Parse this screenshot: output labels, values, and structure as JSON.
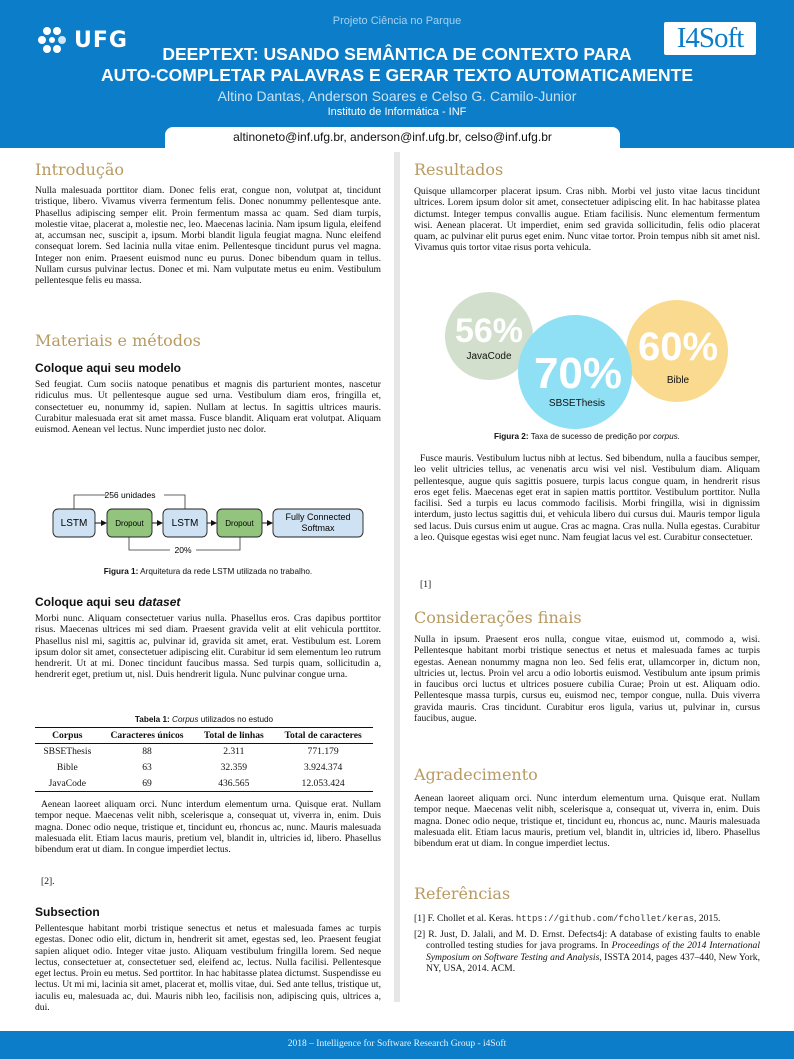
{
  "header": {
    "project": "Projeto Ciência no Parque",
    "title_line1": "DEEPTEXT: USANDO SEMÂNTICA DE CONTEXTO PARA",
    "title_line2": "AUTO-COMPLETAR PALAVRAS E GERAR TEXTO AUTOMATICAMENTE",
    "authors": "Altino Dantas, Anderson Soares e Celso G. Camilo-Junior",
    "institute": "Instituto de Informática - INF",
    "emails": "altinoneto@inf.ufg.br, anderson@inf.ufg.br, celso@inf.ufg.br",
    "logo_left": "UFG",
    "logo_right": "I4Soft",
    "color": "#0b7dc9"
  },
  "left": {
    "intro": {
      "title": "Introdução",
      "text": "Nulla malesuada porttitor diam. Donec felis erat, congue non, volutpat at, tincidunt tristique, libero. Vivamus viverra fermentum felis. Donec nonummy pellentesque ante. Phasellus adipiscing semper elit. Proin fermentum massa ac quam. Sed diam turpis, molestie vitae, placerat a, molestie nec, leo. Maecenas lacinia. Nam ipsum ligula, eleifend at, accumsan nec, suscipit a, ipsum. Morbi blandit ligula feugiat magna. Nunc eleifend consequat lorem. Sed lacinia nulla vitae enim. Pellentesque tincidunt purus vel magna. Integer non enim. Praesent euismod nunc eu purus. Donec bibendum quam in tellus. Nullam cursus pulvinar lectus. Donec et mi. Nam vulputate metus eu enim. Vestibulum pellentesque felis eu massa."
    },
    "methods": {
      "title": "Materiais e métodos",
      "model_heading": "Coloque aqui seu modelo",
      "model_text": "Sed feugiat. Cum sociis natoque penatibus et magnis dis parturient montes, nascetur ridiculus mus. Ut pellentesque augue sed urna. Vestibulum diam eros, fringilla et, consectetuer eu, nonummy id, sapien. Nullam at lectus. In sagittis ultrices mauris. Curabitur malesuada erat sit amet massa. Fusce blandit. Aliquam erat volutpat. Aliquam euismod. Aenean vel lectus. Nunc imperdiet justo nec dolor.",
      "diagram": {
        "nodes": [
          "LSTM",
          "Dropout",
          "LSTM",
          "Dropout",
          "Fully Connected",
          "Softmax"
        ],
        "units_label": "256 unidades",
        "dropout_label": "20%",
        "lstm_color": "#cfe2f3",
        "dropout_color": "#93c47d"
      },
      "figure1_label": "Figura 1:",
      "figure1_caption": "Arquitetura da rede LSTM utilizada no trabalho.",
      "dataset_heading_prefix": "Coloque aqui seu ",
      "dataset_heading_em": "dataset",
      "dataset_text": "Morbi nunc. Aliquam consectetuer varius nulla. Phasellus eros. Cras dapibus porttitor risus. Maecenas ultrices mi sed diam. Praesent gravida velit at elit vehicula porttitor. Phasellus nisl mi, sagittis ac, pulvinar id, gravida sit amet, erat. Vestibulum est. Lorem ipsum dolor sit amet, consectetuer adipiscing elit. Curabitur id sem elementum leo rutrum hendrerit. Ut at mi. Donec tincidunt faucibus massa. Sed turpis quam, sollicitudin a, hendrerit eget, pretium ut, nisl. Duis hendrerit ligula. Nunc pulvinar congue urna.",
      "table": {
        "label": "Tabela 1:",
        "caption_em": "Corpus",
        "caption_rest": " utilizados no estudo",
        "headers": [
          "Corpus",
          "Caracteres únicos",
          "Total de linhas",
          "Total de caracteres"
        ],
        "rows": [
          [
            "SBSEThesis",
            "88",
            "2.311",
            "771.179"
          ],
          [
            "Bible",
            "63",
            "32.359",
            "3.924.374"
          ],
          [
            "JavaCode",
            "69",
            "436.565",
            "12.053.424"
          ]
        ]
      },
      "after_table_text": "Aenean laoreet aliquam orci. Nunc interdum elementum urna. Quisque erat. Nullam tempor neque. Maecenas velit nibh, scelerisque a, consequat ut, viverra in, enim. Duis magna. Donec odio neque, tristique et, tincidunt eu, rhoncus ac, nunc. Mauris malesuada malesuada elit. Etiam lacus mauris, pretium vel, blandit in, ultricies id, libero. Phasellus bibendum erat ut diam. In congue imperdiet lectus.",
      "after_table_cite": "[2].",
      "subsection_heading": "Subsection",
      "subsection_text": "Pellentesque habitant morbi tristique senectus et netus et malesuada fames ac turpis egestas. Donec odio elit, dictum in, hendrerit sit amet, egestas sed, leo. Praesent feugiat sapien aliquet odio. Integer vitae justo. Aliquam vestibulum fringilla lorem. Sed neque lectus, consectetuer at, consectetuer sed, eleifend ac, lectus. Nulla facilisi. Pellentesque eget lectus. Proin eu metus. Sed porttitor. In hac habitasse platea dictumst. Suspendisse eu lectus. Ut mi mi, lacinia sit amet, placerat et, mollis vitae, dui. Sed ante tellus, tristique ut, iaculis eu, malesuada ac, dui. Mauris nibh leo, facilisis non, adipiscing quis, ultrices a, dui."
    }
  },
  "right": {
    "results": {
      "title": "Resultados",
      "text": "Quisque ullamcorper placerat ipsum. Cras nibh. Morbi vel justo vitae lacus tincidunt ultrices. Lorem ipsum dolor sit amet, consectetuer adipiscing elit. In hac habitasse platea dictumst. Integer tempus convallis augue. Etiam facilisis. Nunc elementum fermentum wisi. Aenean placerat. Ut imperdiet, enim sed gravida sollicitudin, felis odio placerat quam, ac pulvinar elit purus eget enim. Nunc vitae tortor. Proin tempus nibh sit amet nisl. Vivamus quis tortor vitae risus porta vehicula.",
      "figure2": {
        "items": [
          {
            "value": "56%",
            "label": "JavaCode",
            "color": "#d2dfcc"
          },
          {
            "value": "70%",
            "label": "SBSEThesis",
            "color": "#8fe0f4"
          },
          {
            "value": "60%",
            "label": "Bible",
            "color": "#f9da8e"
          }
        ],
        "label": "Figura 2:",
        "caption_rest": " Taxa de sucesso de predição por ",
        "caption_em": "corpus."
      },
      "text2": "Fusce mauris. Vestibulum luctus nibh at lectus. Sed bibendum, nulla a faucibus semper, leo velit ultricies tellus, ac venenatis arcu wisi vel nisl. Vestibulum diam. Aliquam pellentesque, augue quis sagittis posuere, turpis lacus congue quam, in hendrerit risus eros eget felis. Maecenas eget erat in sapien mattis porttitor. Vestibulum porttitor. Nulla facilisi. Sed a turpis eu lacus commodo facilisis. Morbi fringilla, wisi in dignissim interdum, justo lectus sagittis dui, et vehicula libero dui cursus dui. Mauris tempor ligula sed lacus. Duis cursus enim ut augue. Cras ac magna. Cras nulla. Nulla egestas. Curabitur a leo. Quisque egestas wisi eget nunc. Nam feugiat lacus vel est. Curabitur consectetuer.",
      "cite": "[1]"
    },
    "conclusions": {
      "title": "Considerações finais",
      "text": "Nulla in ipsum. Praesent eros nulla, congue vitae, euismod ut, commodo a, wisi. Pellentesque habitant morbi tristique senectus et netus et malesuada fames ac turpis egestas. Aenean nonummy magna non leo. Sed felis erat, ullamcorper in, dictum non, ultricies ut, lectus. Proin vel arcu a odio lobortis euismod. Vestibulum ante ipsum primis in faucibus orci luctus et ultrices posuere cubilia Curae; Proin ut est. Aliquam odio. Pellentesque massa turpis, cursus eu, euismod nec, tempor congue, nulla. Duis viverra gravida mauris. Cras tincidunt. Curabitur eros ligula, varius ut, pulvinar in, cursus faucibus, augue."
    },
    "acknowledgements": {
      "title": "Agradecimento",
      "text": "Aenean laoreet aliquam orci. Nunc interdum elementum urna. Quisque erat. Nullam tempor neque. Maecenas velit nibh, scelerisque a, consequat ut, viverra in, enim. Duis magna. Donec odio neque, tristique et, tincidunt eu, rhoncus ac, nunc. Mauris malesuada malesuada elit. Etiam lacus mauris, pretium vel, blandit in, ultricies id, libero. Phasellus bibendum erat ut diam. In congue imperdiet lectus."
    },
    "references": {
      "title": "Referências",
      "ref1": {
        "num": "[1]",
        "text": " F. Chollet et al. Keras. ",
        "url": "https://github.com/fchollet/keras",
        "tail": ", 2015."
      },
      "ref2": {
        "num": "[2]",
        "text": " R. Just, D. Jalali, and M. D. Ernst. Defects4j: A database of existing faults to enable controlled testing studies for java programs. In ",
        "em": "Proceedings of the 2014 International Symposium on Software Testing and Analysis",
        "tail": ", ISSTA 2014, pages 437–440, New York, NY, USA, 2014. ACM."
      }
    }
  },
  "footer": {
    "text": "2018 – Intelligence for Software Research Group - i4Soft"
  }
}
